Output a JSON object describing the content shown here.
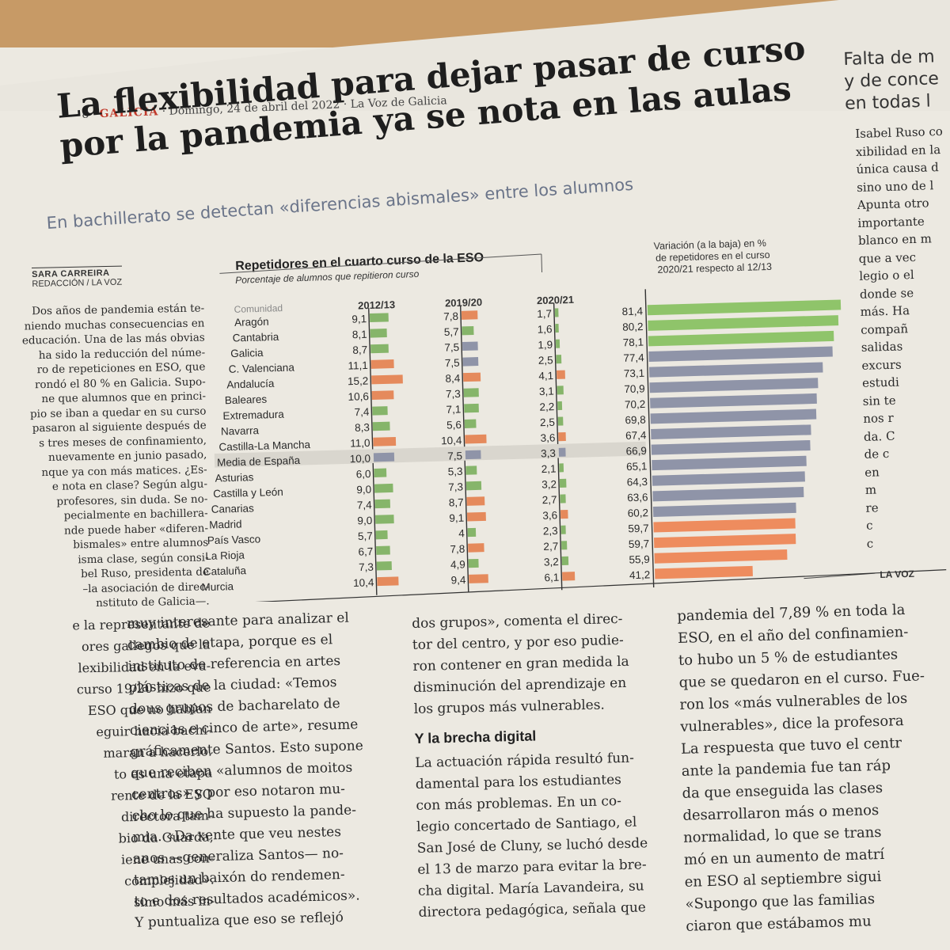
{
  "page_header": {
    "page_number": "8",
    "section": "GALICIA",
    "date": "Domingo, 24 de abril del 2022",
    "publication": "La Voz de Galicia"
  },
  "headline": {
    "line1": "La flexibilidad para dejar pasar de curso",
    "line2": "por la pandemia ya se nota en las aulas"
  },
  "subheadline": "En bachillerato se detectan «diferencias abismales» entre los alumnos",
  "byline": {
    "author": "SARA CARREIRA",
    "affiliation": "REDACCIÓN / LA VOZ"
  },
  "side_story": {
    "title_line1": "Falta de m",
    "title_line2": "y de conce",
    "title_line3": "en todas l",
    "body": [
      "Isabel Ruso co",
      "xibilidad en la",
      "única causa d",
      "sino uno de l",
      "Apunta otro",
      "importante",
      "blanco en m",
      "que a vec",
      "legio o el",
      "donde se",
      "más. Ha",
      "compañ",
      "salidas",
      "excurs",
      "estudi",
      "sin te",
      "nos r",
      "da. C",
      "de c",
      "en",
      "m",
      "re",
      "c",
      "c"
    ]
  },
  "article": {
    "col1_small": [
      "Dos años de pandemia están te-",
      "niendo muchas consecuencias en",
      "educación. Una de las más obvias",
      "ha sido la reducción del núme-",
      "ro de repeticiones en ESO, que",
      "rondó el 80 % en Galicia. Supo-",
      "ne que alumnos que en princi-",
      "pio se iban a quedar en su curso",
      "pasaron al siguiente después de",
      "s tres meses de confinamiento,",
      "nuevamente en junio pasado,",
      "nque ya con más matices. ¿Es-",
      "e nota en clase? Según algu-",
      "profesores, sin duda. Se no-",
      "pecialmente en bachillera-",
      "nde puede haber «diferen-",
      "bismales» entre alumnos",
      "isma clase, según consi-",
      "bel Ruso, presidenta de",
      "–la asociación de direc-",
      "nstituto de Galicia—."
    ],
    "col1_large": [
      "e la representante de",
      "ores gallegos que la",
      "lexibilidad en la eva-",
      "curso 19/20 hizo que",
      "ESO que no habían",
      "eguir hacia bachi-",
      "maran a hacerlo.",
      "to es una etapa",
      "rente de la ESO",
      "directora tam-",
      "bio da Guarda,",
      "iene unas con-",
      "complejidad».",
      "simo más in-"
    ],
    "col2": [
      "muy interesante para analizar el",
      "cambio de etapa, porque es el",
      "instituto de referencia en artes",
      "plásticas de la ciudad: «Temos",
      "dous grupos de bacharelato de",
      "ciencias e cinco de arte», resume",
      "gráficamente Santos. Esto supone",
      "que reciben «alumnos de moitos",
      "centros» y por eso notaron mu-",
      "cho lo que ha supuesto la pande-",
      "mia. «Da xente que veu nestes",
      "anos —generaliza Santos— no-",
      "tamos un baixón do rendemen-",
      "to e dos resultados académicos».",
      "Y puntualiza que eso se reflejó"
    ],
    "col3_top": [
      "dos grupos», comenta el direc-",
      "tor del centro, y por eso pudie-",
      "ron contener en gran medida la",
      "disminución del aprendizaje en",
      "los grupos más vulnerables."
    ],
    "col3_heading": "Y la brecha digital",
    "col3_bottom": [
      "La actuación rápida resultó fun-",
      "damental para los estudiantes",
      "con más problemas. En un co-",
      "legio concertado de Santiago, el",
      "San José de Cluny, se luchó desde",
      "el 13 de marzo para evitar la bre-",
      "cha digital. María Lavandeira, su",
      "directora pedagógica, señala que"
    ],
    "col4": [
      "pandemia del 7,89 % en toda la",
      "ESO, en el año del confinamien-",
      "to hubo un 5 % de estudiantes",
      "que se quedaron en el curso. Fue-",
      "ron los «más vulnerables de los",
      "vulnerables», dice la profesora",
      "La respuesta que tuvo el centr",
      "ante la pandemia fue tan ráp",
      "da que enseguida las clases",
      "desarrollaron más o menos",
      "normalidad, lo que se trans",
      "mó en un aumento de matrí",
      "en ESO al septiembre sigui",
      "«Supongo que las familias",
      "ciaron que estábamos mu"
    ]
  },
  "chart_data": {
    "type": "table",
    "title": "Repetidores en el cuarto curso de la ESO",
    "subtitle": "Porcentaje de alumnos que repitieron curso",
    "column_headers": [
      "Comunidad",
      "2012/13",
      "2019/20",
      "2020/21"
    ],
    "variation_label": "Variación (a la baja) en % de repetidores en el curso 2020/21 respecto al 12/13",
    "source": "LA VOZ",
    "rows": [
      {
        "community": "Aragón",
        "y2012": 9.1,
        "y2012_label": "9,1",
        "y2019": 7.8,
        "y2019_label": "7,8",
        "y2020": 1.7,
        "y2020_label": "1,7",
        "variation": 81.4,
        "variation_label": "81,4"
      },
      {
        "community": "Cantabria",
        "y2012": 8.1,
        "y2012_label": "8,1",
        "y2019": 5.7,
        "y2019_label": "5,7",
        "y2020": 1.6,
        "y2020_label": "1,6",
        "variation": 80.2,
        "variation_label": "80,2"
      },
      {
        "community": "Galicia",
        "y2012": 8.7,
        "y2012_label": "8,7",
        "y2019": 7.5,
        "y2019_label": "7,5",
        "y2020": 1.9,
        "y2020_label": "1,9",
        "variation": 78.1,
        "variation_label": "78,1"
      },
      {
        "community": "C. Valenciana",
        "y2012": 11.1,
        "y2012_label": "11,1",
        "y2019": 7.5,
        "y2019_label": "7,5",
        "y2020": 2.5,
        "y2020_label": "2,5",
        "variation": 77.4,
        "variation_label": "77,4"
      },
      {
        "community": "Andalucía",
        "y2012": 15.2,
        "y2012_label": "15,2",
        "y2019": 8.4,
        "y2019_label": "8,4",
        "y2020": 4.1,
        "y2020_label": "4,1",
        "variation": 73.1,
        "variation_label": "73,1"
      },
      {
        "community": "Baleares",
        "y2012": 10.6,
        "y2012_label": "10,6",
        "y2019": 7.3,
        "y2019_label": "7,3",
        "y2020": 3.1,
        "y2020_label": "3,1",
        "variation": 70.9,
        "variation_label": "70,9"
      },
      {
        "community": "Extremadura",
        "y2012": 7.4,
        "y2012_label": "7,4",
        "y2019": 7.1,
        "y2019_label": "7,1",
        "y2020": 2.2,
        "y2020_label": "2,2",
        "variation": 70.2,
        "variation_label": "70,2"
      },
      {
        "community": "Navarra",
        "y2012": 8.3,
        "y2012_label": "8,3",
        "y2019": 5.6,
        "y2019_label": "5,6",
        "y2020": 2.5,
        "y2020_label": "2,5",
        "variation": 69.8,
        "variation_label": "69,8"
      },
      {
        "community": "Castilla-La Mancha",
        "y2012": 11.0,
        "y2012_label": "11,0",
        "y2019": 10.4,
        "y2019_label": "10,4",
        "y2020": 3.6,
        "y2020_label": "3,6",
        "variation": 67.4,
        "variation_label": "67,4"
      },
      {
        "community": "Media de España",
        "y2012": 10.0,
        "y2012_label": "10,0",
        "y2019": 7.5,
        "y2019_label": "7,5",
        "y2020": 3.3,
        "y2020_label": "3,3",
        "variation": 66.9,
        "variation_label": "66,9"
      },
      {
        "community": "Asturias",
        "y2012": 6.0,
        "y2012_label": "6,0",
        "y2019": 5.3,
        "y2019_label": "5,3",
        "y2020": 2.1,
        "y2020_label": "2,1",
        "variation": 65.1,
        "variation_label": "65,1"
      },
      {
        "community": "Castilla y León",
        "y2012": 9.0,
        "y2012_label": "9,0",
        "y2019": 7.3,
        "y2019_label": "7,3",
        "y2020": 3.2,
        "y2020_label": "3,2",
        "variation": 64.3,
        "variation_label": "64,3"
      },
      {
        "community": "Canarias",
        "y2012": 7.4,
        "y2012_label": "7,4",
        "y2019": 8.7,
        "y2019_label": "8,7",
        "y2020": 2.7,
        "y2020_label": "2,7",
        "variation": 63.6,
        "variation_label": "63,6"
      },
      {
        "community": "Madrid",
        "y2012": 9.0,
        "y2012_label": "9,0",
        "y2019": 9.1,
        "y2019_label": "9,1",
        "y2020": 3.6,
        "y2020_label": "3,6",
        "variation": 60.2,
        "variation_label": "60,2"
      },
      {
        "community": "País Vasco",
        "y2012": 5.7,
        "y2012_label": "5,7",
        "y2019": 4,
        "y2019_label": "4",
        "y2020": 2.3,
        "y2020_label": "2,3",
        "variation": 59.7,
        "variation_label": "59,7"
      },
      {
        "community": "La Rioja",
        "y2012": 6.7,
        "y2012_label": "6,7",
        "y2019": 7.8,
        "y2019_label": "7,8",
        "y2020": 2.7,
        "y2020_label": "2,7",
        "variation": 59.7,
        "variation_label": "59,7"
      },
      {
        "community": "Cataluña",
        "y2012": 7.3,
        "y2012_label": "7,3",
        "y2019": 4.9,
        "y2019_label": "4,9",
        "y2020": 3.2,
        "y2020_label": "3,2",
        "variation": 55.9,
        "variation_label": "55,9"
      },
      {
        "community": "Murcia",
        "y2012": 10.4,
        "y2012_label": "10,4",
        "y2019": 9.4,
        "y2019_label": "9,4",
        "y2020": 6.1,
        "y2020_label": "6,1",
        "variation": 41.2,
        "variation_label": "41,2"
      }
    ],
    "colors": {
      "average": "#8f94a8",
      "above": "#e58a5c",
      "below": "#86b56a",
      "variation_green": "#8fc46a",
      "variation_grey": "#8f94a8",
      "variation_orange": "#ee8c5e"
    }
  }
}
